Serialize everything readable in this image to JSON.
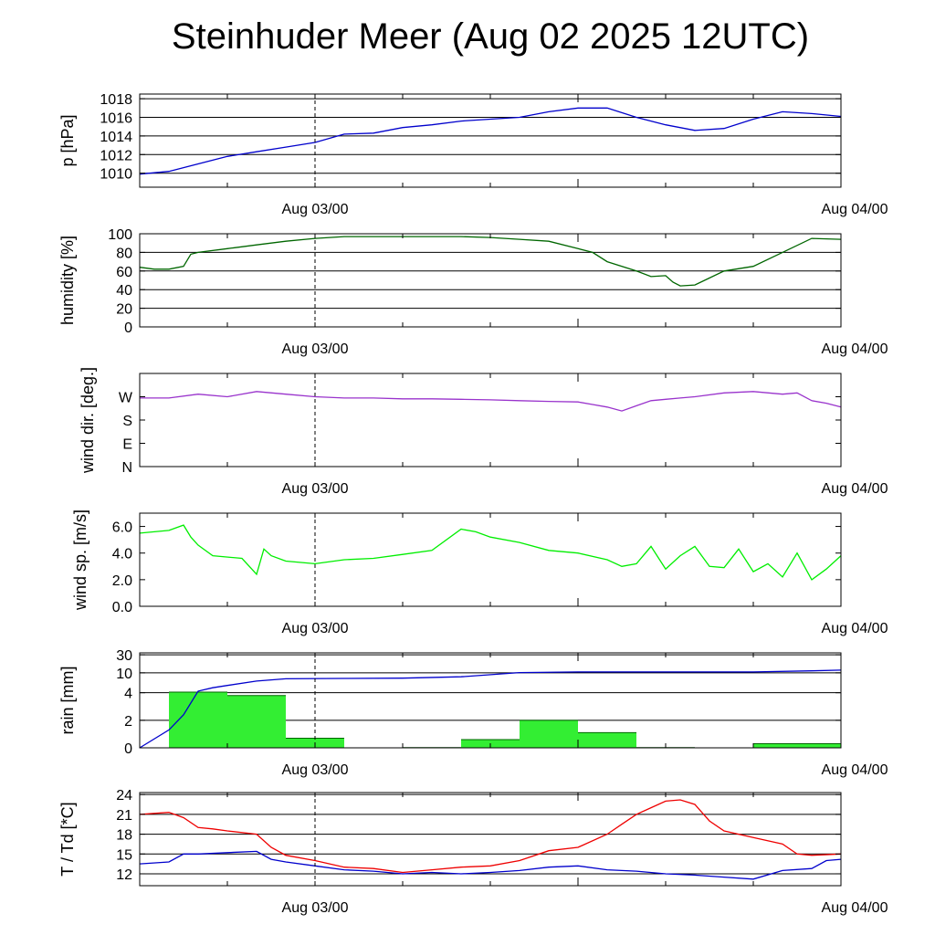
{
  "title": "Steinhuder Meer (Aug 02 2025 12UTC)",
  "x_labels": [
    "Aug 03/00",
    "Aug 04/00"
  ],
  "chart_data": [
    {
      "type": "line",
      "ylabel": "p [hPa]",
      "ylim": [
        1008.5,
        1018.5
      ],
      "yticks": [
        1010,
        1012,
        1014,
        1016,
        1018
      ],
      "ytick_labels": [
        "1010",
        "1012",
        "1014",
        "1016",
        "1018"
      ],
      "grid": true,
      "series": [
        {
          "color": "#0000cc",
          "x": [
            0,
            2,
            4,
            6,
            8,
            10,
            12,
            14,
            16,
            18,
            20,
            22,
            24,
            26,
            28,
            30,
            32,
            34,
            36,
            38,
            40,
            42,
            44,
            46,
            48
          ],
          "y": [
            1009.9,
            1010.2,
            1011.0,
            1011.8,
            1012.3,
            1012.8,
            1013.3,
            1014.2,
            1014.3,
            1014.9,
            1015.2,
            1015.6,
            1015.8,
            1016.0,
            1016.6,
            1017.0,
            1017.0,
            1016.0,
            1015.2,
            1014.6,
            1014.8,
            1015.8,
            1016.6,
            1016.4,
            1016.1
          ]
        }
      ]
    },
    {
      "type": "line",
      "ylabel": "humidity [%]",
      "ylim": [
        0,
        100
      ],
      "yticks": [
        0,
        20,
        40,
        60,
        80,
        100
      ],
      "ytick_labels": [
        "0",
        "20",
        "40",
        "60",
        "80",
        "100"
      ],
      "grid": true,
      "series": [
        {
          "color": "#006600",
          "x": [
            0,
            1,
            2,
            3,
            3.5,
            4,
            6,
            8,
            10,
            12,
            14,
            16,
            18,
            20,
            22,
            24,
            26,
            28,
            30,
            31,
            32,
            34,
            35,
            36,
            36.5,
            37,
            38,
            40,
            42,
            44,
            46,
            48
          ],
          "y": [
            64,
            62,
            62,
            65,
            78,
            80,
            84,
            88,
            92,
            95,
            97,
            97,
            97,
            97,
            97,
            96,
            94,
            92,
            84,
            80,
            70,
            60,
            54,
            55,
            48,
            44,
            45,
            60,
            65,
            80,
            95,
            94
          ]
        }
      ]
    },
    {
      "type": "line",
      "ylabel": "wind dir. [deg.]",
      "ylim": [
        0,
        360
      ],
      "yticks": [
        0,
        90,
        180,
        270
      ],
      "ytick_labels": [
        "N",
        "E",
        "S",
        "W"
      ],
      "grid": false,
      "series": [
        {
          "color": "#9933cc",
          "x": [
            0,
            2,
            4,
            6,
            8,
            10,
            12,
            14,
            16,
            18,
            20,
            22,
            24,
            26,
            28,
            30,
            31,
            32,
            33,
            34,
            35,
            36,
            37,
            38,
            40,
            42,
            44,
            45,
            46,
            47,
            48
          ],
          "y": [
            265,
            265,
            280,
            270,
            290,
            280,
            270,
            265,
            265,
            262,
            262,
            260,
            258,
            255,
            252,
            250,
            240,
            230,
            215,
            235,
            255,
            260,
            265,
            270,
            285,
            290,
            280,
            285,
            255,
            245,
            230
          ]
        }
      ]
    },
    {
      "type": "line",
      "ylabel": "wind sp. [m/s]",
      "ylim": [
        0,
        7
      ],
      "yticks": [
        0,
        2,
        4,
        6
      ],
      "ytick_labels": [
        "0.0",
        "2.0",
        "4.0",
        "6.0"
      ],
      "grid": false,
      "series": [
        {
          "color": "#00ee00",
          "x": [
            0,
            1,
            2,
            3,
            3.5,
            4,
            5,
            7,
            8,
            8.5,
            9,
            10,
            12,
            14,
            16,
            18,
            20,
            22,
            23,
            24,
            26,
            28,
            30,
            32,
            33,
            34,
            35,
            36,
            37,
            38,
            39,
            40,
            41,
            42,
            43,
            44,
            45,
            46,
            47,
            48
          ],
          "y": [
            5.5,
            5.6,
            5.7,
            6.1,
            5.2,
            4.6,
            3.8,
            3.6,
            2.4,
            4.3,
            3.8,
            3.4,
            3.2,
            3.5,
            3.6,
            3.9,
            4.2,
            5.8,
            5.6,
            5.2,
            4.8,
            4.2,
            4.0,
            3.5,
            3.0,
            3.2,
            4.5,
            2.8,
            3.8,
            4.5,
            3.0,
            2.9,
            4.3,
            2.6,
            3.2,
            2.2,
            4.0,
            2.0,
            2.8,
            3.8
          ]
        }
      ]
    },
    {
      "type": "bar",
      "ylabel": "rain [mm]",
      "yticks": [
        0,
        2,
        4,
        10,
        30
      ],
      "ytick_labels": [
        "0",
        "2",
        "4",
        "10",
        "30"
      ],
      "grid": true,
      "bar_color": "#33ee33",
      "bars": [
        {
          "x0": 2,
          "x1": 6,
          "value": 4.2
        },
        {
          "x0": 6,
          "x1": 10,
          "value": 3.8
        },
        {
          "x0": 10,
          "x1": 14,
          "value": 0.7
        },
        {
          "x0": 18,
          "x1": 22,
          "value": 0.02
        },
        {
          "x0": 22,
          "x1": 26,
          "value": 0.6
        },
        {
          "x0": 26,
          "x1": 30,
          "value": 2.0
        },
        {
          "x0": 30,
          "x1": 34,
          "value": 1.1
        },
        {
          "x0": 34,
          "x1": 38,
          "value": 0.02
        },
        {
          "x0": 42,
          "x1": 48,
          "value": 0.3
        }
      ],
      "series": [
        {
          "color": "#0000cc",
          "x": [
            0,
            2,
            3,
            4,
            5,
            6,
            8,
            10,
            14,
            18,
            22,
            26,
            30,
            34,
            38,
            42,
            46,
            48
          ],
          "y": [
            0,
            1.3,
            2.4,
            4.5,
            5.5,
            6.2,
            7.5,
            8.2,
            8.3,
            8.4,
            8.8,
            10.2,
            11.0,
            11.0,
            11.0,
            11.0,
            12.2,
            13.0
          ]
        }
      ]
    },
    {
      "type": "line",
      "ylabel": "T / Td [*C]",
      "ylim": [
        10.2,
        24.3
      ],
      "yticks": [
        12,
        15,
        18,
        21,
        24
      ],
      "ytick_labels": [
        "12",
        "15",
        "18",
        "21",
        "24"
      ],
      "grid": true,
      "series": [
        {
          "color": "#ee0000",
          "x": [
            0,
            2,
            3,
            4,
            5,
            6,
            8,
            9,
            10,
            12,
            14,
            16,
            18,
            20,
            22,
            24,
            26,
            28,
            30,
            32,
            33,
            34,
            35,
            36,
            37,
            38,
            39,
            40,
            42,
            44,
            45,
            46,
            48
          ],
          "y": [
            21.0,
            21.3,
            20.5,
            19.0,
            18.8,
            18.5,
            18.0,
            16.0,
            14.8,
            14.0,
            13.0,
            12.8,
            12.2,
            12.6,
            13.0,
            13.2,
            14.0,
            15.5,
            16.0,
            18.0,
            19.5,
            21.0,
            22.0,
            23.0,
            23.2,
            22.5,
            20.0,
            18.5,
            17.5,
            16.5,
            15.0,
            14.8,
            15.0
          ]
        },
        {
          "color": "#0000cc",
          "x": [
            0,
            2,
            3,
            4,
            6,
            8,
            9,
            10,
            12,
            14,
            16,
            18,
            20,
            22,
            24,
            26,
            28,
            30,
            32,
            34,
            36,
            38,
            40,
            42,
            44,
            46,
            47,
            48
          ],
          "y": [
            13.5,
            13.8,
            15.0,
            15.0,
            15.2,
            15.4,
            14.2,
            13.8,
            13.2,
            12.6,
            12.4,
            12.0,
            12.2,
            12.0,
            12.2,
            12.5,
            13.0,
            13.2,
            12.6,
            12.4,
            12.0,
            11.8,
            11.5,
            11.2,
            12.5,
            12.8,
            14.0,
            14.2
          ]
        }
      ]
    }
  ]
}
